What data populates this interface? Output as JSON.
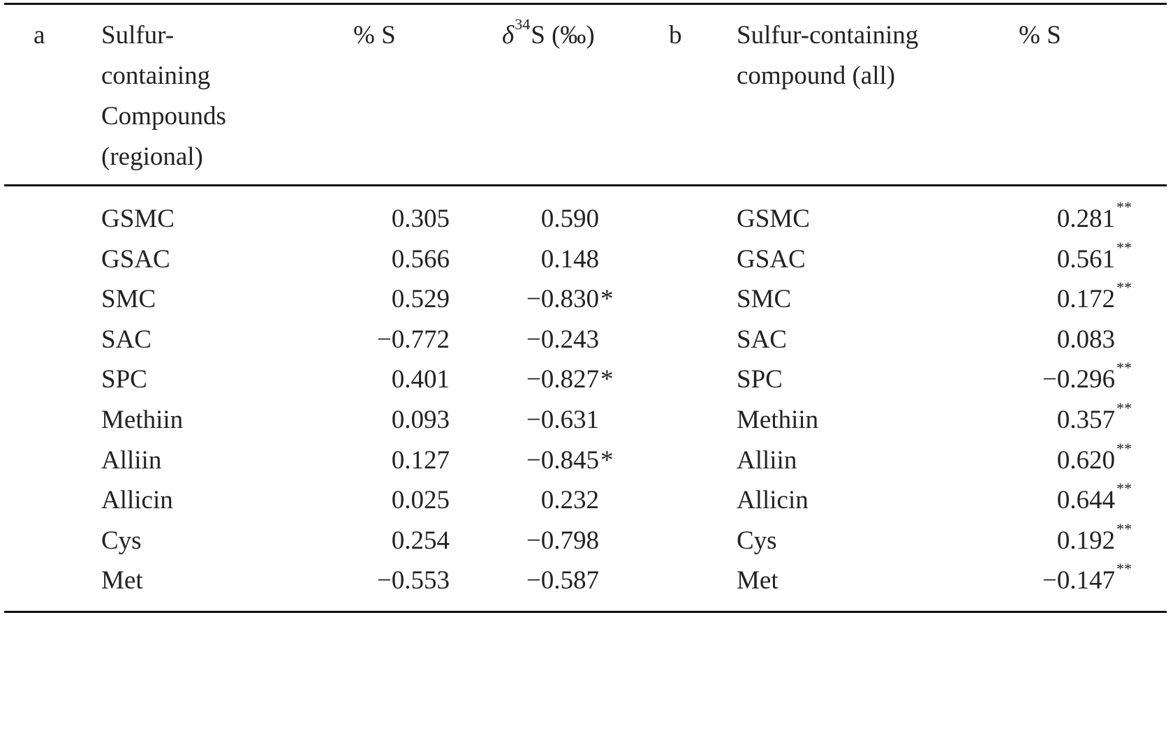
{
  "table": {
    "header": {
      "a_label": "a",
      "a_compound": [
        "Sulfur-",
        "containing",
        "Compounds",
        "(regional)"
      ],
      "a_pct": "% S",
      "a_delta": {
        "symbol": "δ",
        "sup": "34",
        "rest": "S (‰)"
      },
      "b_label": "b",
      "b_compound": [
        "Sulfur-containing",
        "compound (all)"
      ],
      "b_pct": "% S"
    },
    "rows": [
      {
        "a_name": "GSMC",
        "a_pct": "0.305",
        "a_delta": "0.590",
        "b_name": "GSMC",
        "b_pct": "0.281",
        "b_note": "**"
      },
      {
        "a_name": "GSAC",
        "a_pct": "0.566",
        "a_delta": "0.148",
        "b_name": "GSAC",
        "b_pct": "0.561",
        "b_note": "**"
      },
      {
        "a_name": "SMC",
        "a_pct": "0.529",
        "a_delta": "−0.830",
        "a_note": "*",
        "b_name": "SMC",
        "b_pct": "0.172",
        "b_note": "**"
      },
      {
        "a_name": "SAC",
        "a_pct": "−0.772",
        "a_delta": "−0.243",
        "b_name": "SAC",
        "b_pct": "0.083"
      },
      {
        "a_name": "SPC",
        "a_pct": "0.401",
        "a_delta": "−0.827",
        "a_note": "*",
        "b_name": "SPC",
        "b_pct": "−0.296",
        "b_note": "**"
      },
      {
        "a_name": "Methiin",
        "a_pct": "0.093",
        "a_delta": "−0.631",
        "b_name": "Methiin",
        "b_pct": "0.357",
        "b_note": "**"
      },
      {
        "a_name": "Alliin",
        "a_pct": "0.127",
        "a_delta": "−0.845",
        "a_note": "*",
        "b_name": "Alliin",
        "b_pct": "0.620",
        "b_note": "**"
      },
      {
        "a_name": "Allicin",
        "a_pct": "0.025",
        "a_delta": "0.232",
        "b_name": "Allicin",
        "b_pct": "0.644",
        "b_note": "**"
      },
      {
        "a_name": "Cys",
        "a_pct": "0.254",
        "a_delta": "−0.798",
        "b_name": "Cys",
        "b_pct": "0.192",
        "b_note": "**"
      },
      {
        "a_name": "Met",
        "a_pct": "−0.553",
        "a_delta": "−0.587",
        "b_name": "Met",
        "b_pct": "−0.147",
        "b_note": "**"
      }
    ]
  }
}
